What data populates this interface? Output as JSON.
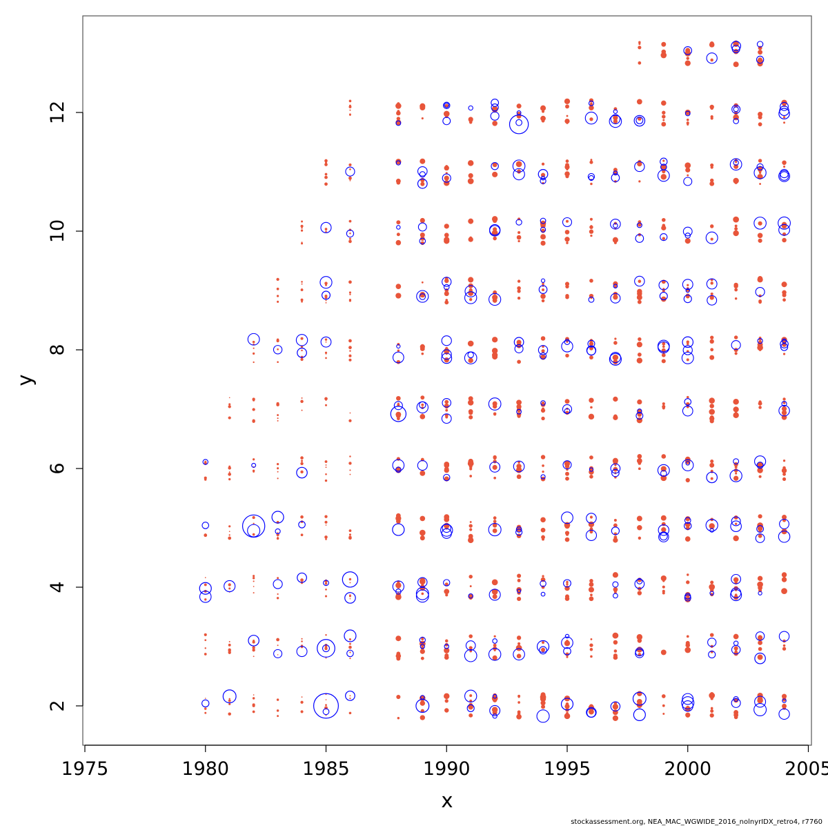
{
  "chart_data": {
    "type": "scatter",
    "title": "",
    "xlabel": "x",
    "ylabel": "y",
    "xlim": [
      1975,
      2005
    ],
    "ylim": [
      1.4,
      13.7
    ],
    "x_ticks": [
      1975,
      1980,
      1985,
      1990,
      1995,
      2000,
      2005
    ],
    "y_ticks": [
      2,
      4,
      6,
      8,
      10,
      12
    ],
    "grid": false,
    "legend": "none",
    "series_colors": {
      "observed_dots": "#e8553a",
      "bubbles": "#0000ff"
    },
    "x": [
      1980,
      1981,
      1982,
      1983,
      1984,
      1985,
      1986,
      1988,
      1989,
      1990,
      1991,
      1992,
      1993,
      1994,
      1995,
      1996,
      1997,
      1998,
      1999,
      2000,
      2001,
      2002,
      2003,
      2004
    ],
    "ages": [
      2,
      3,
      4,
      5,
      6,
      7,
      8,
      9,
      10,
      11,
      12,
      13
    ],
    "start_age": {
      "1980": 2,
      "1981": 2,
      "1982": 2,
      "1983": 2,
      "1984": 2,
      "1985": 2,
      "1986": 2,
      "1988": 2,
      "1989": 2,
      "1990": 2,
      "1991": 2,
      "1992": 2,
      "1993": 2,
      "1994": 2,
      "1995": 2,
      "1996": 2,
      "1997": 2,
      "1998": 2,
      "1999": 2,
      "2000": 2,
      "2001": 2,
      "2002": 2,
      "2003": 2,
      "2004": 2
    },
    "max_age": {
      "1980": 6,
      "1981": 7,
      "1982": 8,
      "1983": 9,
      "1984": 10,
      "1985": 11,
      "1986": 12,
      "1988": 12,
      "1989": 12,
      "1990": 12,
      "1991": 12,
      "1992": 12,
      "1993": 12,
      "1994": 12,
      "1995": 12,
      "1996": 12,
      "1997": 12,
      "1998": 13,
      "1999": 13,
      "2000": 13,
      "2001": 13,
      "2002": 13,
      "2003": 13,
      "2004": 12
    },
    "large_bubbles": [
      {
        "x": 1980,
        "y": 3.98,
        "r": 1.0
      },
      {
        "x": 1981,
        "y": 2.16,
        "r": 1.1
      },
      {
        "x": 1982,
        "y": 5.03,
        "r": 1.9
      },
      {
        "x": 1982,
        "y": 3.1,
        "r": 0.9
      },
      {
        "x": 1983,
        "y": 5.18,
        "r": 1.0
      },
      {
        "x": 1984,
        "y": 7.95,
        "r": 0.8
      },
      {
        "x": 1984,
        "y": 5.93,
        "r": 0.9
      },
      {
        "x": 1984,
        "y": 4.16,
        "r": 0.8
      },
      {
        "x": 1985,
        "y": 2.97,
        "r": 1.5
      },
      {
        "x": 1985,
        "y": 2.0,
        "r": 2.1
      },
      {
        "x": 1985,
        "y": 8.92,
        "r": 0.7
      },
      {
        "x": 1986,
        "y": 4.13,
        "r": 1.3
      },
      {
        "x": 1986,
        "y": 3.18,
        "r": 1.0
      },
      {
        "x": 1986,
        "y": 3.82,
        "r": 0.9
      },
      {
        "x": 1986,
        "y": 2.17,
        "r": 0.8
      },
      {
        "x": 1988,
        "y": 6.92,
        "r": 1.3
      },
      {
        "x": 1988,
        "y": 4.97,
        "r": 1.0
      },
      {
        "x": 1989,
        "y": 10.8,
        "r": 0.8
      },
      {
        "x": 1989,
        "y": 2.0,
        "r": 1.1
      },
      {
        "x": 1993,
        "y": 11.8,
        "r": 1.6
      },
      {
        "x": 1993,
        "y": 8.13,
        "r": 0.8
      },
      {
        "x": 1994,
        "y": 10.96,
        "r": 0.8
      },
      {
        "x": 1994,
        "y": 3.0,
        "r": 1.0
      },
      {
        "x": 1995,
        "y": 2.03,
        "r": 1.0
      },
      {
        "x": 1997,
        "y": 7.84,
        "r": 1.0
      },
      {
        "x": 1998,
        "y": 11.86,
        "r": 0.9
      },
      {
        "x": 1998,
        "y": 2.12,
        "r": 1.1
      },
      {
        "x": 1998,
        "y": 1.85,
        "r": 1.0
      },
      {
        "x": 2000,
        "y": 8.13,
        "r": 0.9
      },
      {
        "x": 2001,
        "y": 5.85,
        "r": 0.9
      },
      {
        "x": 2002,
        "y": 13.12,
        "r": 0.8
      },
      {
        "x": 2003,
        "y": 2.8,
        "r": 0.9
      },
      {
        "x": 2004,
        "y": 11.98,
        "r": 0.9
      }
    ]
  },
  "caption": "stockassessment.org, NEA_MAC_WGWIDE_2016_nolnyrIDX_retro4, r7760"
}
